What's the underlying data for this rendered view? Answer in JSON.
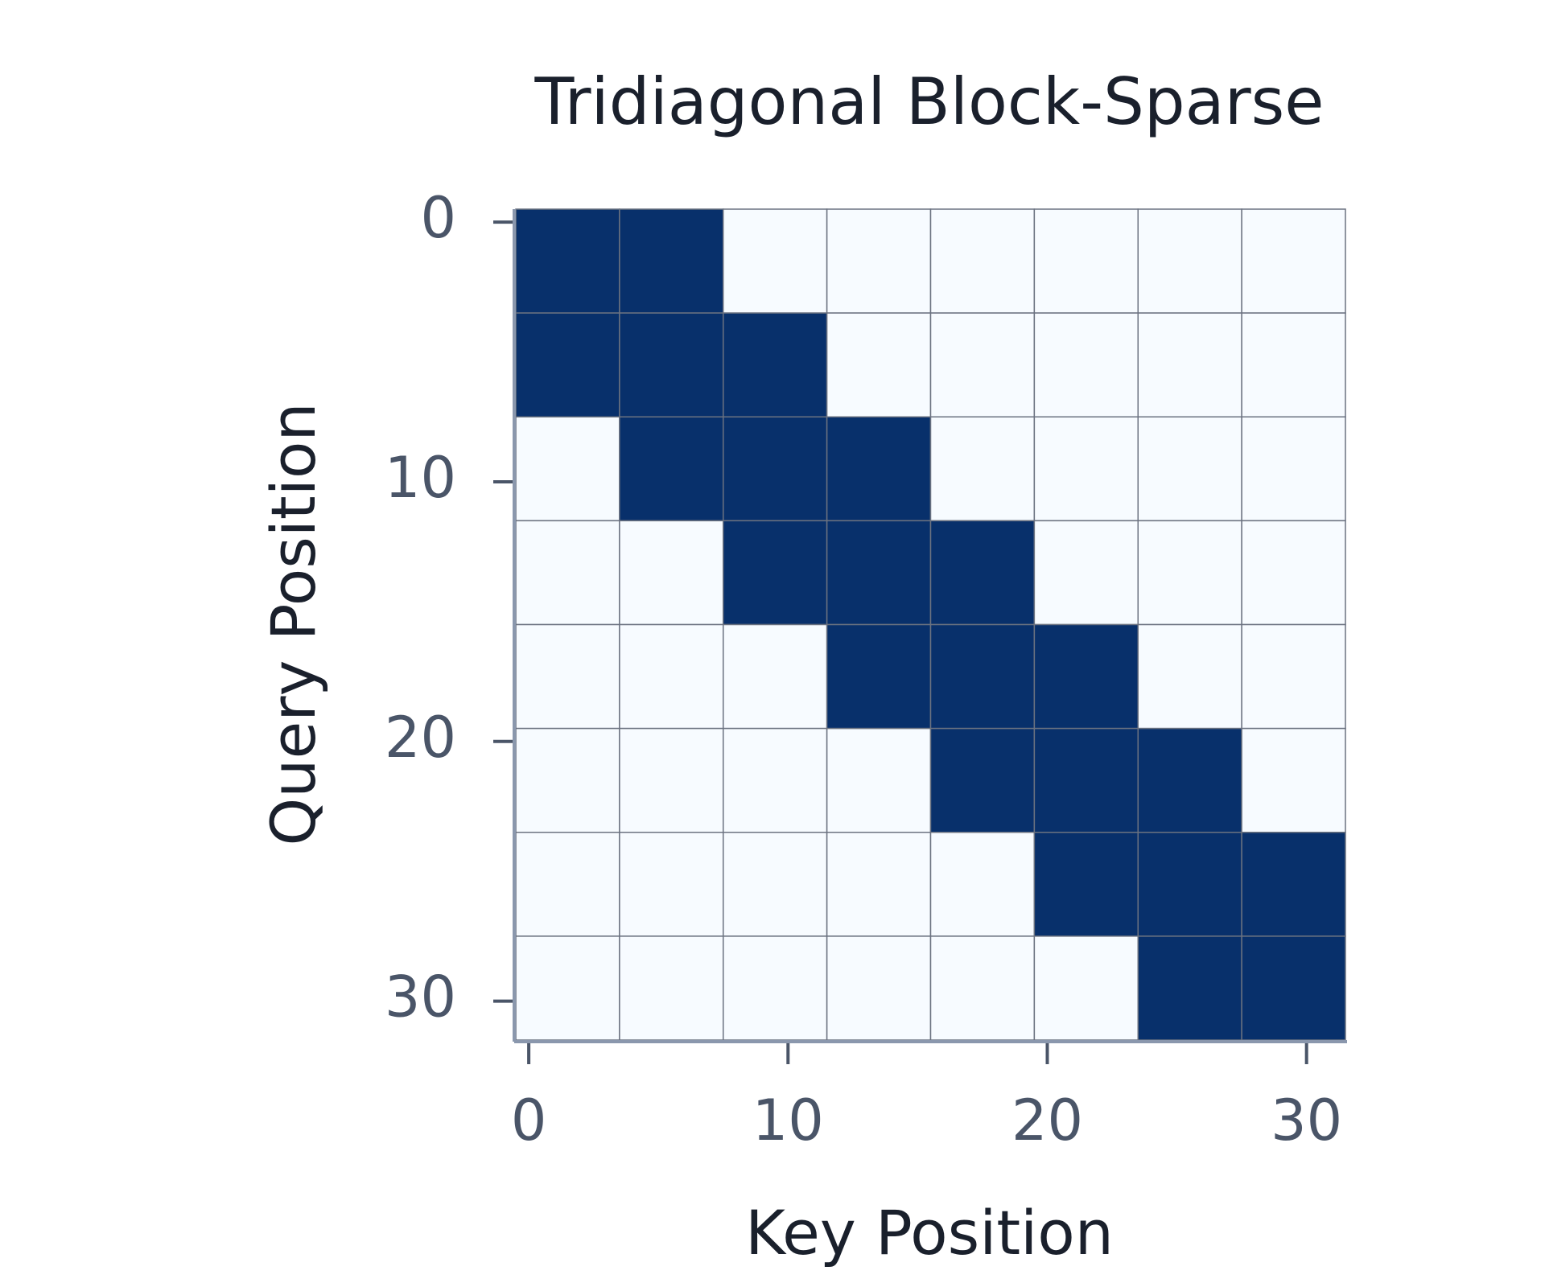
{
  "chart_data": {
    "type": "heatmap",
    "title": "Tridiagonal Block-Sparse",
    "x_label": "Key Position",
    "y_label": "Query Position",
    "x_bins": [
      -0.5,
      3.5,
      7.5,
      11.5,
      15.5,
      19.5,
      23.5,
      27.5,
      31.5
    ],
    "y_bins": [
      -0.5,
      3.5,
      7.5,
      11.5,
      15.5,
      19.5,
      23.5,
      27.5,
      31.5
    ],
    "values": [
      [
        1,
        1,
        0,
        0,
        0,
        0,
        0,
        0
      ],
      [
        1,
        1,
        1,
        0,
        0,
        0,
        0,
        0
      ],
      [
        0,
        1,
        1,
        1,
        0,
        0,
        0,
        0
      ],
      [
        0,
        0,
        1,
        1,
        1,
        0,
        0,
        0
      ],
      [
        0,
        0,
        0,
        1,
        1,
        1,
        0,
        0
      ],
      [
        0,
        0,
        0,
        0,
        1,
        1,
        1,
        0
      ],
      [
        0,
        0,
        0,
        0,
        0,
        1,
        1,
        1
      ],
      [
        0,
        0,
        0,
        0,
        0,
        0,
        1,
        1
      ]
    ],
    "colorscale": [
      "#f7fbff",
      "#08306b"
    ],
    "zlim": [
      0,
      1
    ],
    "xlim": [
      -0.5,
      31.5
    ],
    "ylim": [
      31.5,
      -0.5
    ],
    "xticks": [
      0,
      10,
      20,
      30
    ],
    "yticks": [
      0,
      10,
      20,
      30
    ]
  }
}
